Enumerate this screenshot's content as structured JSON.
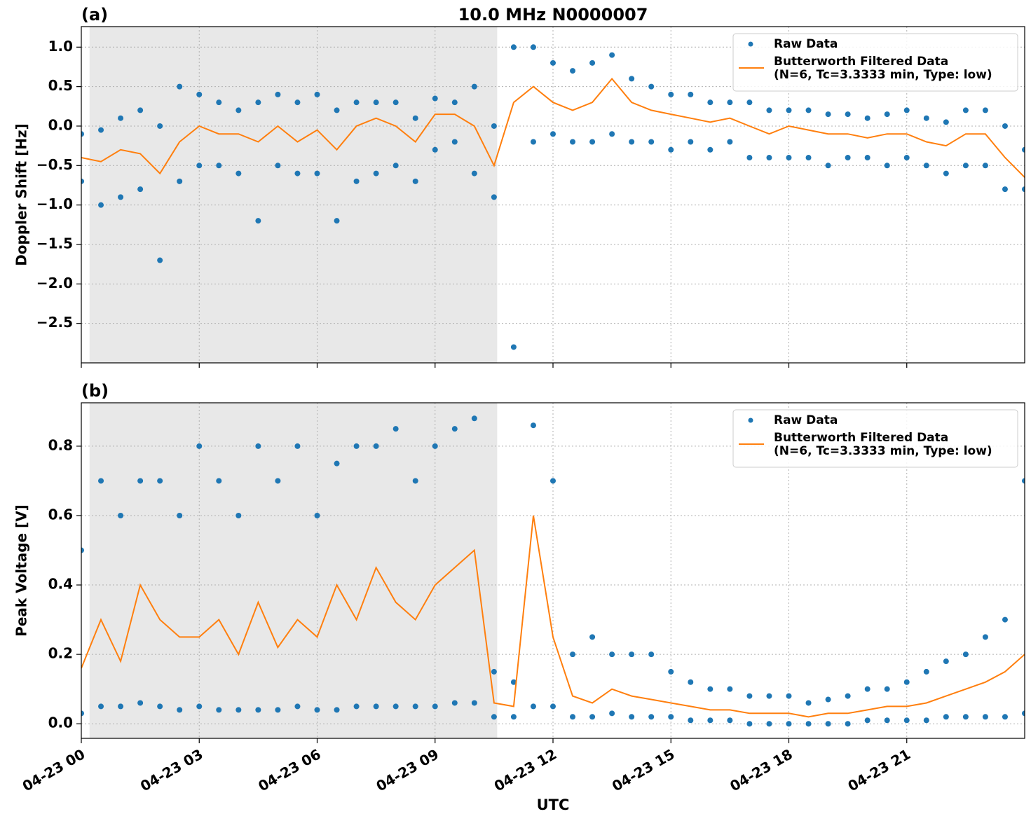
{
  "chart_data": [
    {
      "type": "scatter",
      "panel_label": "(a)",
      "title": "10.0 MHz N0000007",
      "ylabel": "Doppler Shift [Hz]",
      "xlim": [
        0,
        24
      ],
      "xticks": [
        0,
        3,
        6,
        9,
        12,
        15,
        18,
        21
      ],
      "show_xtick_labels": false,
      "ylim": [
        -3.0,
        1.26
      ],
      "yticks": [
        {
          "value": -2.5,
          "label": "−2.5"
        },
        {
          "value": -2,
          "label": "−2.0"
        },
        {
          "value": -1.5,
          "label": "−1.5"
        },
        {
          "value": -1,
          "label": "−1.0"
        },
        {
          "value": -0.5,
          "label": "−0.5"
        },
        {
          "value": 0,
          "label": "0.0"
        },
        {
          "value": 0.5,
          "label": "0.5"
        },
        {
          "value": 1,
          "label": "1.0"
        }
      ],
      "grid": true,
      "legend": "upper right",
      "shade": [
        0.21,
        10.58
      ],
      "shade_color": "#e8e8e8",
      "series": [
        {
          "name": "Raw Data",
          "color": "#1f77b4",
          "style": "markers",
          "x": [
            0,
            0.5,
            1,
            1.5,
            2,
            2.5,
            3,
            3.5,
            4,
            4.5,
            5,
            5.5,
            6,
            6.5,
            7,
            7.5,
            8,
            8.5,
            9,
            9.5,
            10,
            10.5,
            11,
            11.5,
            12,
            12.5,
            13,
            13.5,
            14,
            14.5,
            15,
            15.5,
            16,
            16.5,
            17,
            17.5,
            18,
            18.5,
            19,
            19.5,
            20,
            20.5,
            21,
            21.5,
            22,
            22.5,
            23,
            23.5,
            24,
            0,
            0.5,
            1,
            1.5,
            2,
            2.5,
            3,
            3.5,
            4,
            4.5,
            5,
            5.5,
            6,
            6.5,
            7,
            7.5,
            8,
            8.5,
            9,
            9.5,
            10,
            10.5,
            11,
            11.5,
            12,
            12.5,
            13,
            13.5,
            14,
            14.5,
            15,
            15.5,
            16,
            16.5,
            17,
            17.5,
            18,
            18.5,
            19,
            19.5,
            20,
            20.5,
            21,
            21.5,
            22,
            22.5,
            23,
            23.5,
            24
          ],
          "values": [
            -0.1,
            -0.05,
            0.1,
            0.2,
            0.0,
            0.5,
            0.4,
            0.3,
            0.2,
            0.3,
            0.4,
            0.3,
            0.4,
            0.2,
            0.3,
            0.3,
            0.3,
            0.1,
            0.35,
            0.3,
            0.5,
            0.0,
            1.0,
            1.0,
            0.8,
            0.7,
            0.8,
            0.9,
            0.6,
            0.5,
            0.4,
            0.4,
            0.3,
            0.3,
            0.3,
            0.2,
            0.2,
            0.2,
            0.15,
            0.15,
            0.1,
            0.15,
            0.2,
            0.1,
            0.05,
            0.2,
            0.2,
            0.0,
            -0.3,
            -0.7,
            -1.0,
            -0.9,
            -0.8,
            -1.7,
            -0.7,
            -0.5,
            -0.5,
            -0.6,
            -1.2,
            -0.5,
            -0.6,
            -0.6,
            -1.2,
            -0.7,
            -0.6,
            -0.5,
            -0.7,
            -0.3,
            -0.2,
            -0.6,
            -0.9,
            -2.8,
            -0.2,
            -0.1,
            -0.2,
            -0.2,
            -0.1,
            -0.2,
            -0.2,
            -0.3,
            -0.2,
            -0.3,
            -0.2,
            -0.4,
            -0.4,
            -0.4,
            -0.4,
            -0.5,
            -0.4,
            -0.4,
            -0.5,
            -0.4,
            -0.5,
            -0.6,
            -0.5,
            -0.5,
            -0.8,
            -0.8
          ]
        },
        {
          "name": "Butterworth Filtered Data\n(N=6, Tc=3.3333 min, Type: low)",
          "color": "#ff7f0e",
          "style": "line",
          "x": [
            0,
            0.5,
            1,
            1.5,
            2,
            2.5,
            3,
            3.5,
            4,
            4.5,
            5,
            5.5,
            6,
            6.5,
            7,
            7.5,
            8,
            8.5,
            9,
            9.5,
            10,
            10.5,
            11,
            11.5,
            12,
            12.5,
            13,
            13.5,
            14,
            14.5,
            15,
            15.5,
            16,
            16.5,
            17,
            17.5,
            18,
            18.5,
            19,
            19.5,
            20,
            20.5,
            21,
            21.5,
            22,
            22.5,
            23,
            23.5,
            24
          ],
          "values": [
            -0.4,
            -0.45,
            -0.3,
            -0.35,
            -0.6,
            -0.2,
            0.0,
            -0.1,
            -0.1,
            -0.2,
            0.0,
            -0.2,
            -0.05,
            -0.3,
            0.0,
            0.1,
            0.0,
            -0.2,
            0.15,
            0.15,
            0.0,
            -0.5,
            0.3,
            0.5,
            0.3,
            0.2,
            0.3,
            0.6,
            0.3,
            0.2,
            0.15,
            0.1,
            0.05,
            0.1,
            0.0,
            -0.1,
            0.0,
            -0.05,
            -0.1,
            -0.1,
            -0.15,
            -0.1,
            -0.1,
            -0.2,
            -0.25,
            -0.1,
            -0.1,
            -0.4,
            -0.65
          ]
        }
      ]
    },
    {
      "type": "scatter",
      "panel_label": "(b)",
      "ylabel": "Peak Voltage [V]",
      "xlabel": "UTC",
      "xlim": [
        0,
        24
      ],
      "xticks": [
        {
          "value": 0,
          "label": "04-23 00"
        },
        {
          "value": 3,
          "label": "04-23 03"
        },
        {
          "value": 6,
          "label": "04-23 06"
        },
        {
          "value": 9,
          "label": "04-23 09"
        },
        {
          "value": 12,
          "label": "04-23 12"
        },
        {
          "value": 15,
          "label": "04-23 15"
        },
        {
          "value": 18,
          "label": "04-23 18"
        },
        {
          "value": 21,
          "label": "04-23 21"
        }
      ],
      "show_xtick_labels": true,
      "ylim": [
        -0.042,
        0.925
      ],
      "yticks": [
        {
          "value": 0,
          "label": "0.0"
        },
        {
          "value": 0.2,
          "label": "0.2"
        },
        {
          "value": 0.4,
          "label": "0.4"
        },
        {
          "value": 0.6,
          "label": "0.6"
        },
        {
          "value": 0.8,
          "label": "0.8"
        }
      ],
      "grid": true,
      "legend": "upper right",
      "shade": [
        0.21,
        10.58
      ],
      "shade_color": "#e8e8e8",
      "series": [
        {
          "name": "Raw Data",
          "color": "#1f77b4",
          "style": "markers",
          "x": [
            0,
            0.5,
            1,
            1.5,
            2,
            2.5,
            3,
            3.5,
            4,
            4.5,
            5,
            5.5,
            6,
            6.5,
            7,
            7.5,
            8,
            8.5,
            9,
            9.5,
            10,
            10.5,
            11,
            11.5,
            12,
            12.5,
            13,
            13.5,
            14,
            14.5,
            15,
            15.5,
            16,
            16.5,
            17,
            17.5,
            18,
            18.5,
            19,
            19.5,
            20,
            20.5,
            21,
            21.5,
            22,
            22.5,
            23,
            23.5,
            24,
            0,
            0.5,
            1,
            1.5,
            2,
            2.5,
            3,
            3.5,
            4,
            4.5,
            5,
            5.5,
            6,
            6.5,
            7,
            7.5,
            8,
            8.5,
            9,
            9.5,
            10,
            10.5,
            11,
            11.5,
            12,
            12.5,
            13,
            13.5,
            14,
            14.5,
            15,
            15.5,
            16,
            16.5,
            17,
            17.5,
            18,
            18.5,
            19,
            19.5,
            20,
            20.5,
            21,
            21.5,
            22,
            22.5,
            23,
            23.5,
            24
          ],
          "values": [
            0.5,
            0.7,
            0.6,
            0.7,
            0.7,
            0.6,
            0.8,
            0.7,
            0.6,
            0.8,
            0.7,
            0.8,
            0.6,
            0.75,
            0.8,
            0.8,
            0.85,
            0.7,
            0.8,
            0.85,
            0.88,
            0.15,
            0.12,
            0.86,
            0.7,
            0.2,
            0.25,
            0.2,
            0.2,
            0.2,
            0.15,
            0.12,
            0.1,
            0.1,
            0.08,
            0.08,
            0.08,
            0.06,
            0.07,
            0.08,
            0.1,
            0.1,
            0.12,
            0.15,
            0.18,
            0.2,
            0.25,
            0.3,
            0.7,
            0.03,
            0.05,
            0.05,
            0.06,
            0.05,
            0.04,
            0.05,
            0.04,
            0.04,
            0.04,
            0.04,
            0.05,
            0.04,
            0.04,
            0.05,
            0.05,
            0.05,
            0.05,
            0.05,
            0.06,
            0.06,
            0.02,
            0.02,
            0.05,
            0.05,
            0.02,
            0.02,
            0.03,
            0.02,
            0.02,
            0.02,
            0.01,
            0.01,
            0.01,
            0.0,
            0.0,
            0.0,
            0.0,
            0.0,
            0.0,
            0.01,
            0.01,
            0.01,
            0.01,
            0.02,
            0.02,
            0.02,
            0.02,
            0.03
          ]
        },
        {
          "name": "Butterworth Filtered Data\n(N=6, Tc=3.3333 min, Type: low)",
          "color": "#ff7f0e",
          "style": "line",
          "x": [
            0,
            0.5,
            1,
            1.5,
            2,
            2.5,
            3,
            3.5,
            4,
            4.5,
            5,
            5.5,
            6,
            6.5,
            7,
            7.5,
            8,
            8.5,
            9,
            9.5,
            10,
            10.5,
            11,
            11.5,
            12,
            12.5,
            13,
            13.5,
            14,
            14.5,
            15,
            15.5,
            16,
            16.5,
            17,
            17.5,
            18,
            18.5,
            19,
            19.5,
            20,
            20.5,
            21,
            21.5,
            22,
            22.5,
            23,
            23.5,
            24
          ],
          "values": [
            0.16,
            0.3,
            0.18,
            0.4,
            0.3,
            0.25,
            0.25,
            0.3,
            0.2,
            0.35,
            0.22,
            0.3,
            0.25,
            0.4,
            0.3,
            0.45,
            0.35,
            0.3,
            0.4,
            0.45,
            0.5,
            0.06,
            0.05,
            0.6,
            0.25,
            0.08,
            0.06,
            0.1,
            0.08,
            0.07,
            0.06,
            0.05,
            0.04,
            0.04,
            0.03,
            0.03,
            0.03,
            0.02,
            0.03,
            0.03,
            0.04,
            0.05,
            0.05,
            0.06,
            0.08,
            0.1,
            0.12,
            0.15,
            0.2
          ]
        }
      ]
    }
  ]
}
